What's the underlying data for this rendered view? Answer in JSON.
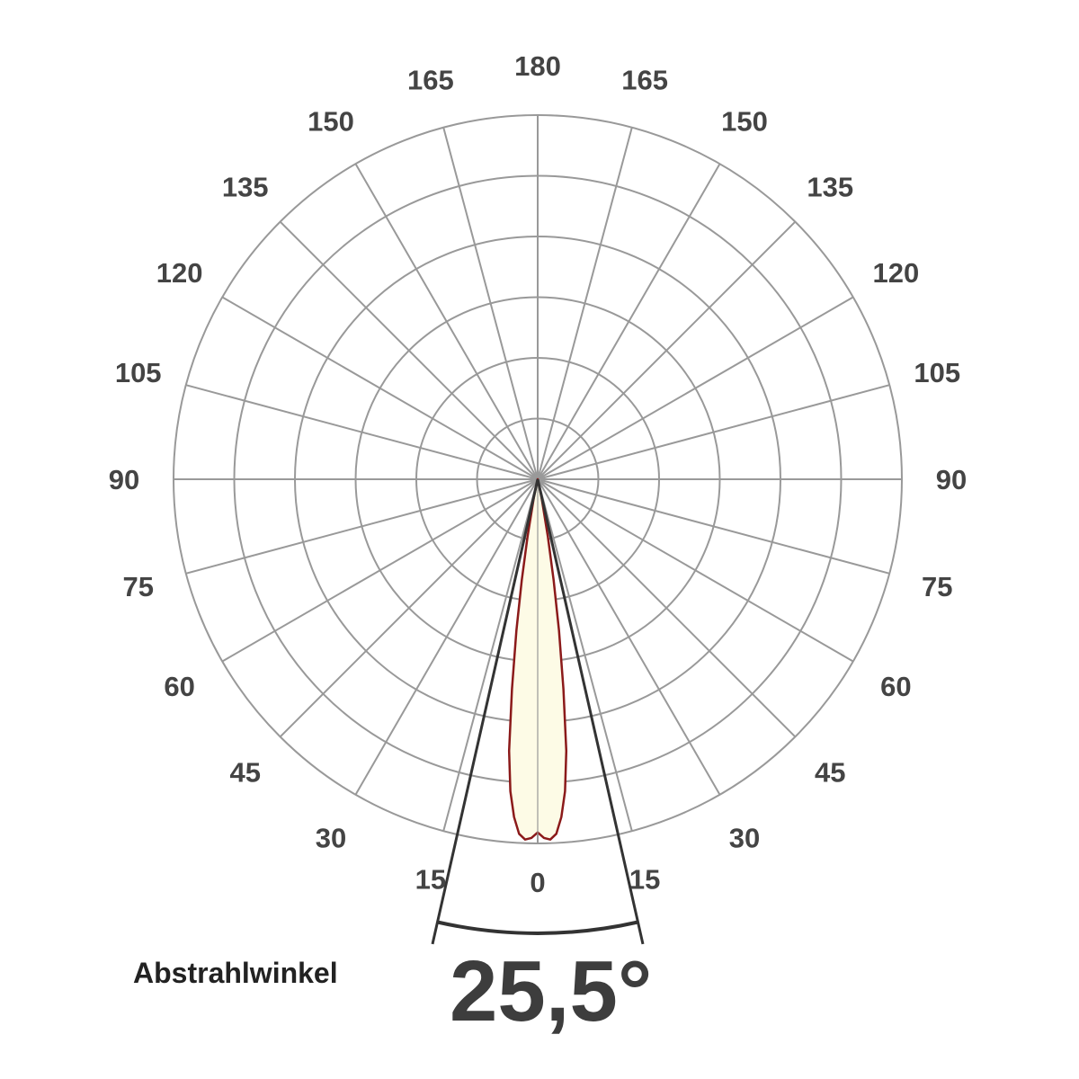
{
  "chart_data": {
    "type": "polar",
    "angle_ticks_left": [
      "180",
      "165",
      "150",
      "135",
      "120",
      "105",
      "90",
      "75",
      "60",
      "45",
      "30",
      "15",
      "0"
    ],
    "angle_ticks_right": [
      "165",
      "150",
      "135",
      "120",
      "105",
      "90",
      "75",
      "60",
      "45",
      "30",
      "15"
    ],
    "angle_step_deg": 15,
    "rings": 6,
    "grid": true,
    "series": [
      {
        "type": "area",
        "points": [
          {
            "angle": 0,
            "r": 0.97
          },
          {
            "angle": 1,
            "r": 0.985
          },
          {
            "angle": 2,
            "r": 0.99
          },
          {
            "angle": 3,
            "r": 0.975
          },
          {
            "angle": 4,
            "r": 0.93
          },
          {
            "angle": 5,
            "r": 0.86
          },
          {
            "angle": 6,
            "r": 0.75
          },
          {
            "angle": 7,
            "r": 0.58
          },
          {
            "angle": 8,
            "r": 0.42
          },
          {
            "angle": 9,
            "r": 0.28
          },
          {
            "angle": 10,
            "r": 0.16
          },
          {
            "angle": 12,
            "r": 0.05
          },
          {
            "angle": 15,
            "r": 0.0
          }
        ]
      }
    ],
    "beam_angle_deg": 25.5,
    "caption_label": "Abstrahlwinkel",
    "beam_angle_label": "25,5°",
    "colors": {
      "grid": "#999999",
      "tick_text": "#444444",
      "curve_stroke": "#8b1a1a",
      "curve_fill": "#fdfbe6",
      "beam_lines": "#333333"
    }
  }
}
